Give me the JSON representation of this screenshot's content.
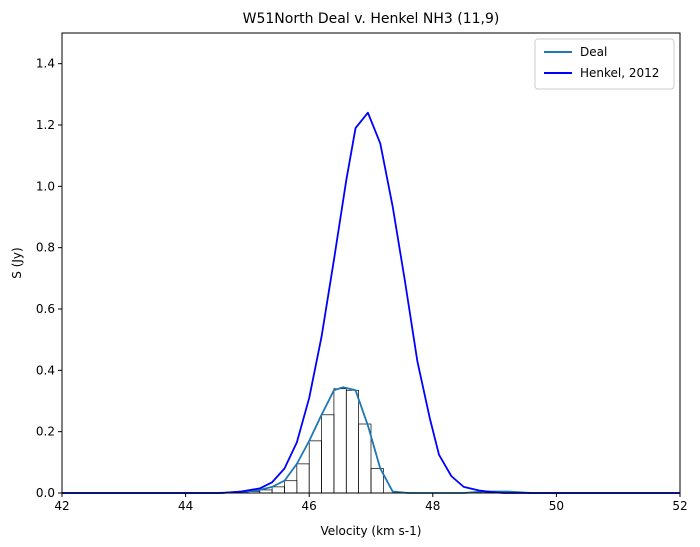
{
  "chart_data": {
    "type": "line",
    "title": "W51North Deal v. Henkel NH3 (11,9)",
    "xlabel": "Velocity (km s-1)",
    "ylabel": "S (Jy)",
    "xlim": [
      42,
      52
    ],
    "ylim": [
      0,
      1.5
    ],
    "xticks": [
      "42",
      "44",
      "46",
      "48",
      "50",
      "52"
    ],
    "yticks": [
      "0.0",
      "0.2",
      "0.4",
      "0.6",
      "0.8",
      "1.0",
      "1.2",
      "1.4"
    ],
    "grid": false,
    "legend_position": "top-right",
    "series": [
      {
        "name": "Deal",
        "color": "#1f77b4",
        "x": [
          42.0,
          42.5,
          43.0,
          43.5,
          44.0,
          44.5,
          45.0,
          45.2,
          45.4,
          45.6,
          45.8,
          46.0,
          46.2,
          46.4,
          46.55,
          46.75,
          46.95,
          47.15,
          47.35,
          47.6,
          48.0,
          48.5,
          48.8,
          49.2,
          49.6,
          50.0,
          51.0,
          52.0
        ],
        "y": [
          0.0,
          0.0,
          0.0,
          0.0,
          0.0,
          0.0,
          0.005,
          0.01,
          0.02,
          0.04,
          0.095,
          0.17,
          0.255,
          0.335,
          0.345,
          0.335,
          0.22,
          0.08,
          0.005,
          0.0,
          0.0,
          0.0,
          0.005,
          0.005,
          0.0,
          0.0,
          0.0,
          0.0
        ]
      },
      {
        "name": "Henkel, 2012",
        "color": "#0000ff",
        "x": [
          42.0,
          42.5,
          43.0,
          43.5,
          44.0,
          44.3,
          44.6,
          44.9,
          45.2,
          45.4,
          45.6,
          45.8,
          46.0,
          46.2,
          46.4,
          46.6,
          46.75,
          46.95,
          47.15,
          47.35,
          47.55,
          47.75,
          47.95,
          48.1,
          48.3,
          48.5,
          48.75,
          48.95,
          49.15,
          49.4,
          49.7,
          50.0,
          50.5,
          51.0,
          51.5,
          52.0
        ],
        "y": [
          0.0,
          0.0,
          0.0,
          0.0,
          0.0,
          0.0,
          0.0,
          0.005,
          0.015,
          0.035,
          0.08,
          0.165,
          0.31,
          0.51,
          0.76,
          1.02,
          1.19,
          1.24,
          1.14,
          0.935,
          0.69,
          0.43,
          0.245,
          0.125,
          0.055,
          0.02,
          0.008,
          0.003,
          0.0,
          0.0,
          0.0,
          0.0,
          0.0,
          0.0,
          0.0,
          0.0
        ]
      }
    ],
    "histogram": {
      "name": "Deal",
      "color": "#000000",
      "bin_edges": [
        45.0,
        45.2,
        45.4,
        45.6,
        45.8,
        46.0,
        46.2,
        46.4,
        46.6,
        46.8,
        47.0,
        47.2,
        47.4
      ],
      "values": [
        0.005,
        0.01,
        0.02,
        0.04,
        0.095,
        0.17,
        0.255,
        0.34,
        0.335,
        0.225,
        0.08,
        0.0
      ]
    }
  }
}
